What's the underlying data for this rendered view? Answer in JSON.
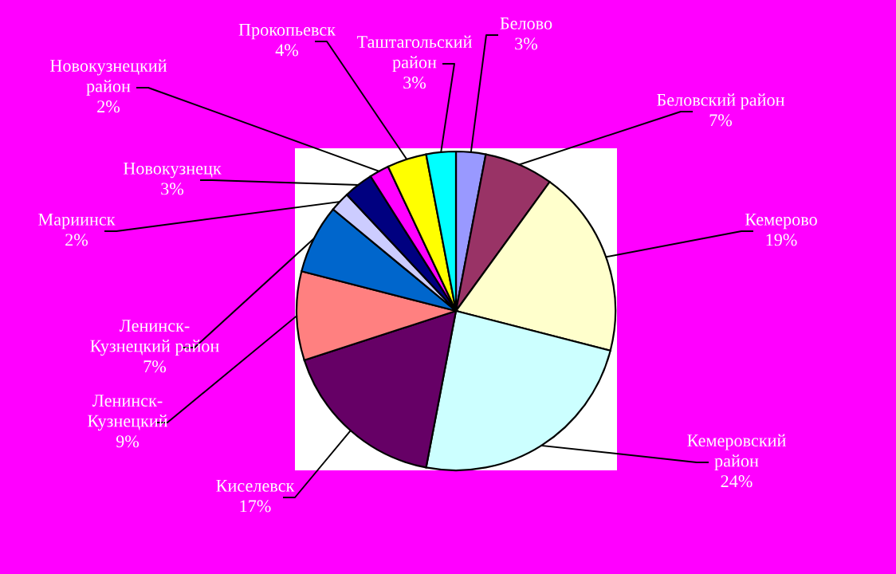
{
  "chart_data": {
    "type": "pie",
    "categories": [
      "Белово",
      "Беловский район",
      "Кемерово",
      "Кемеровский\nрайон",
      "Киселевск",
      "Ленинск-\nКузнецкий",
      "Ленинск-\nКузнецкий район",
      "Мариинск",
      "Новокузнецк",
      "Новокузнецкий\nрайон",
      "Прокопьевск",
      "Таштагольский\nрайон"
    ],
    "values": [
      3,
      7,
      19,
      24,
      17,
      9,
      7,
      2,
      3,
      2,
      4,
      3
    ],
    "colors": [
      "#9999ff",
      "#993366",
      "#ffffcc",
      "#ccffff",
      "#660066",
      "#ff8080",
      "#0066cc",
      "#ccccff",
      "#000080",
      "#ff00ff",
      "#ffff00",
      "#00ffff"
    ],
    "value_labels": [
      "3%",
      "7%",
      "19%",
      "24%",
      "17%",
      "9%",
      "7%",
      "2%",
      "3%",
      "2%",
      "4%",
      "3%"
    ],
    "legend": false
  }
}
